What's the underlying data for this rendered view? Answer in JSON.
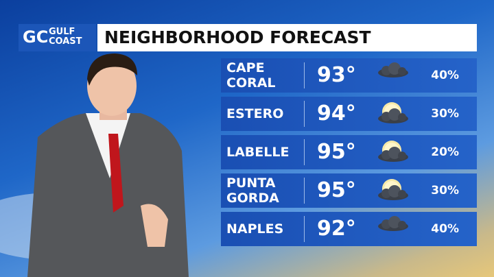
{
  "logo": {
    "mark": "GC",
    "line1": "GULF",
    "line2": "COAST"
  },
  "title": "NEIGHBORHOOD FORECAST",
  "rows": [
    {
      "city": [
        "CAPE",
        "CORAL"
      ],
      "temp": "93°",
      "icon": "cloudy",
      "precip": "40%"
    },
    {
      "city": [
        "ESTERO"
      ],
      "temp": "94°",
      "icon": "partly-cloudy",
      "precip": "30%"
    },
    {
      "city": [
        "LABELLE"
      ],
      "temp": "95°",
      "icon": "partly-cloudy",
      "precip": "20%"
    },
    {
      "city": [
        "PUNTA",
        "GORDA"
      ],
      "temp": "95°",
      "icon": "partly-cloudy",
      "precip": "30%"
    },
    {
      "city": [
        "NAPLES"
      ],
      "temp": "92°",
      "icon": "cloudy",
      "precip": "40%"
    }
  ]
}
